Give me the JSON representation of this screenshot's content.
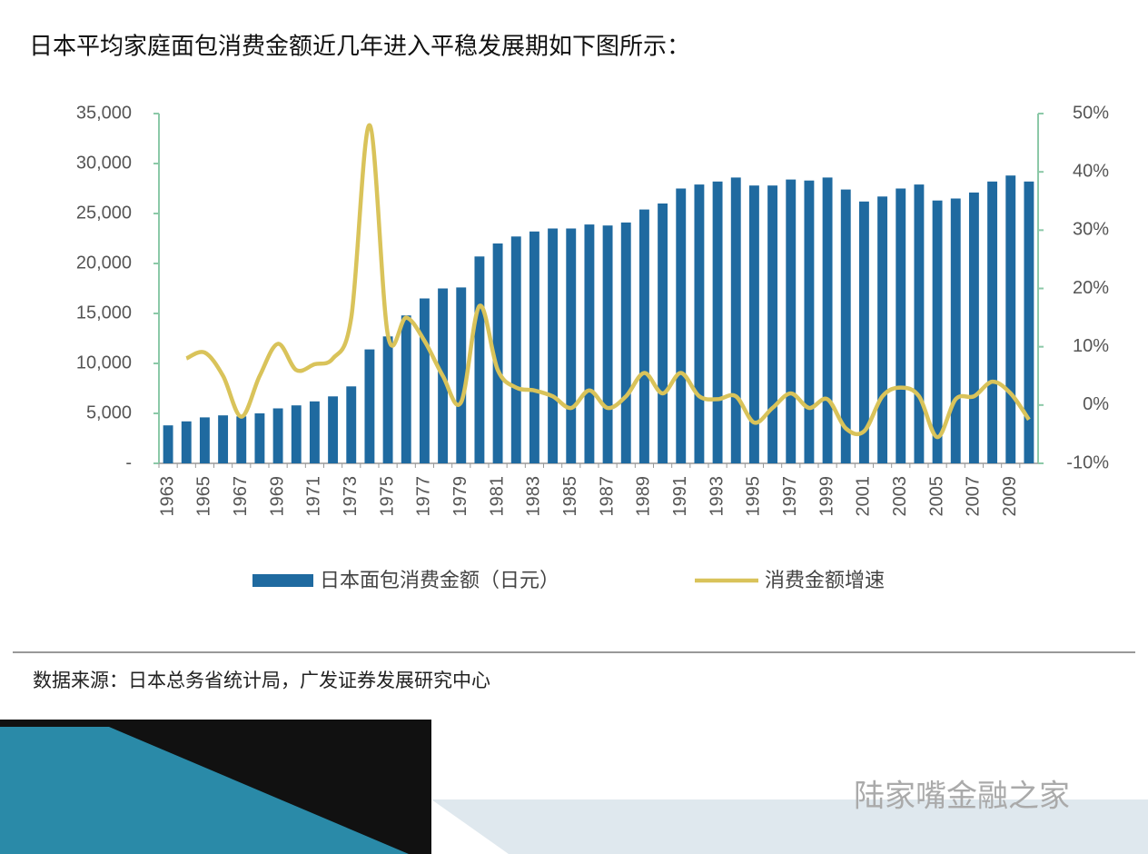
{
  "chart_data": {
    "type": "bar_line",
    "title": "日本平均家庭面包消费金额近几年进入平稳发展期如下图所示：",
    "categories": [
      "1963",
      null,
      "1965",
      null,
      "1967",
      null,
      "1969",
      null,
      "1971",
      null,
      "1973",
      null,
      "1975",
      null,
      "1977",
      null,
      "1979",
      null,
      "1981",
      null,
      "1983",
      null,
      "1985",
      null,
      "1987",
      null,
      "1989",
      null,
      "1991",
      null,
      "1993",
      null,
      "1995",
      null,
      "1997",
      null,
      "1999",
      null,
      "2001",
      null,
      "2003",
      null,
      "2005",
      null,
      "2007",
      null,
      "2009",
      null
    ],
    "series": [
      {
        "name": "日本面包消费金额（日元）",
        "type": "bar",
        "color": "#1f6aa0",
        "values": [
          3800,
          4200,
          4600,
          4800,
          4700,
          5000,
          5500,
          5800,
          6200,
          6700,
          7700,
          11400,
          12700,
          14800,
          16500,
          17500,
          17600,
          20700,
          22000,
          22700,
          23200,
          23500,
          23500,
          23900,
          23800,
          24100,
          25400,
          26000,
          27500,
          27900,
          28200,
          28600,
          27800,
          27800,
          28400,
          28300,
          28600,
          27400,
          26200,
          26700,
          27500,
          27900,
          26300,
          26500,
          27100,
          28200,
          28800,
          28200
        ]
      },
      {
        "name": "消费金额增速",
        "type": "line",
        "axis": "y2",
        "color": "#d9c35a",
        "values": [
          null,
          8,
          9,
          5,
          -2,
          5,
          10.5,
          6,
          7,
          8,
          15,
          48,
          12,
          15,
          11,
          5,
          0.5,
          17,
          6,
          3,
          2.5,
          1.5,
          -0.5,
          2.5,
          -0.5,
          1.5,
          5.5,
          2,
          5.5,
          1.5,
          1,
          1.5,
          -3,
          -0.5,
          2,
          -0.5,
          1,
          -4,
          -4.5,
          1.5,
          3,
          1.5,
          -5.5,
          1,
          1.5,
          4,
          2,
          -2.5
        ]
      }
    ],
    "ylim": [
      0,
      35000
    ],
    "yticks": [
      {
        "value": 0,
        "label": "-"
      },
      {
        "value": 5000,
        "label": "5,000"
      },
      {
        "value": 10000,
        "label": "10,000"
      },
      {
        "value": 15000,
        "label": "15,000"
      },
      {
        "value": 20000,
        "label": "20,000"
      },
      {
        "value": 25000,
        "label": "25,000"
      },
      {
        "value": 30000,
        "label": "30,000"
      },
      {
        "value": 35000,
        "label": "35,000"
      }
    ],
    "y2lim": [
      -10,
      50
    ],
    "y2ticks": [
      {
        "value": -10,
        "label": "-10%"
      },
      {
        "value": 0,
        "label": "0%"
      },
      {
        "value": 10,
        "label": "10%"
      },
      {
        "value": 20,
        "label": "20%"
      },
      {
        "value": 30,
        "label": "30%"
      },
      {
        "value": 40,
        "label": "40%"
      },
      {
        "value": 50,
        "label": "50%"
      }
    ],
    "grid": false,
    "legend": "bottom"
  },
  "source": "数据来源：日本总务省统计局，广发证券发展研究中心",
  "watermark": "陆家嘴金融之家"
}
